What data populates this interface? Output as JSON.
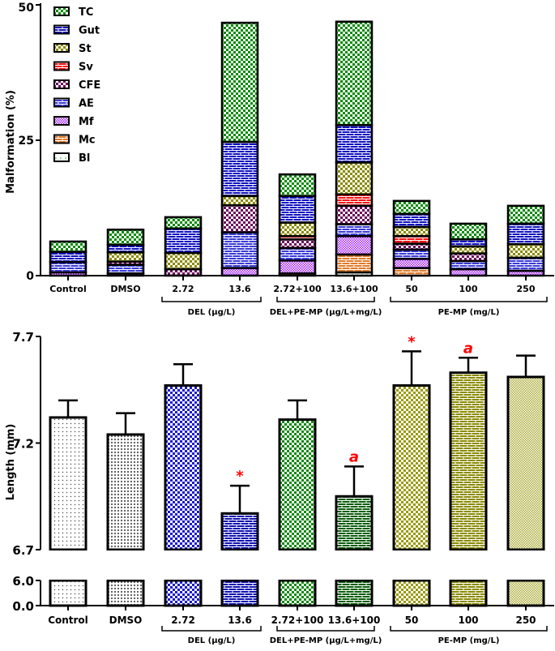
{
  "chart_data": [
    {
      "type": "bar",
      "stacked": true,
      "ylabel": "Malformation (%)",
      "ylim": [
        0,
        50
      ],
      "yticks": [
        0,
        25,
        50
      ],
      "legend_position": "top-left",
      "categories": [
        "Control",
        "DMSO",
        "2.72",
        "13.6",
        "2.72+100",
        "13.6+100",
        "50",
        "100",
        "250"
      ],
      "groups": [
        {
          "label": "DEL (µg/L)",
          "members": [
            "2.72",
            "13.6"
          ]
        },
        {
          "label": "DEL+PE-MP (µg/L+mg/L)",
          "members": [
            "2.72+100",
            "13.6+100"
          ]
        },
        {
          "label": "PE-MP (mg/L)",
          "members": [
            "50",
            "100",
            "250"
          ]
        }
      ],
      "series": [
        {
          "name": "Bl",
          "color": "#22aa22",
          "values": [
            0,
            0,
            0,
            0,
            0,
            0.6,
            0,
            0,
            0
          ]
        },
        {
          "name": "Mc",
          "color": "#e07a28",
          "values": [
            0,
            0,
            0,
            0,
            0.4,
            3.3,
            1.4,
            0,
            0
          ]
        },
        {
          "name": "Mf",
          "color": "#a020f0",
          "values": [
            0.6,
            0.4,
            0,
            1.4,
            2.4,
            3.4,
            1.7,
            1.2,
            0.9
          ]
        },
        {
          "name": "AE",
          "color": "#3a3ad8",
          "values": [
            1.9,
            1.6,
            0,
            6.6,
            2.3,
            2.2,
            1.7,
            1.5,
            2.4
          ]
        },
        {
          "name": "CFE",
          "color": "#6b0a5a",
          "values": [
            0,
            0.6,
            1.2,
            5.0,
            1.6,
            3.4,
            1.1,
            1.4,
            0
          ]
        },
        {
          "name": "Sv",
          "color": "#ff1010",
          "values": [
            0,
            0,
            0,
            0,
            0.6,
            2.1,
            1.4,
            0,
            0
          ]
        },
        {
          "name": "St",
          "color": "#8a8a00",
          "values": [
            0,
            1.7,
            3.0,
            1.7,
            2.5,
            5.9,
            1.7,
            1.3,
            2.5
          ]
        },
        {
          "name": "Gut",
          "color": "#1010c0",
          "values": [
            1.9,
            1.4,
            4.5,
            10.0,
            4.9,
            6.9,
            2.4,
            1.3,
            3.8
          ]
        },
        {
          "name": "TC",
          "color": "#0a8a0a",
          "values": [
            1.9,
            2.8,
            2.1,
            22.0,
            4.0,
            19.1,
            2.4,
            2.9,
            3.3
          ]
        }
      ]
    },
    {
      "type": "bar",
      "ylabel": "Length (mm)",
      "axis_break": [
        6.0,
        6.7
      ],
      "ylim": [
        0,
        7.7
      ],
      "yticks": [
        0.0,
        6.0,
        6.7,
        7.2,
        7.7
      ],
      "ytick_labels": [
        "0.0",
        "6.0",
        "6.7",
        "7.2",
        "7.7"
      ],
      "categories": [
        "Control",
        "DMSO",
        "2.72",
        "13.6",
        "2.72+100",
        "13.6+100",
        "50",
        "100",
        "250"
      ],
      "groups": [
        {
          "label": "DEL (µg/L)",
          "members": [
            "2.72",
            "13.6"
          ]
        },
        {
          "label": "DEL+PE-MP (µg/L+mg/L)",
          "members": [
            "2.72+100",
            "13.6+100"
          ]
        },
        {
          "label": "PE-MP (mg/L)",
          "members": [
            "50",
            "100",
            "250"
          ]
        }
      ],
      "values": [
        7.32,
        7.24,
        7.47,
        6.87,
        7.31,
        6.95,
        7.47,
        7.53,
        7.51
      ],
      "errors": [
        0.08,
        0.1,
        0.1,
        0.13,
        0.09,
        0.14,
        0.16,
        0.07,
        0.1
      ],
      "annotations": [
        "",
        "",
        "",
        "*",
        "",
        "a",
        "*",
        "a",
        ""
      ],
      "annotation_color": "#ff0000",
      "bar_colors": [
        "#d8d8d8",
        "#808080",
        "#1a1ad0",
        "#1010b0",
        "#118811",
        "#0b5e0b",
        "#9a9a10",
        "#8a8a00",
        "#a8a830"
      ]
    }
  ]
}
